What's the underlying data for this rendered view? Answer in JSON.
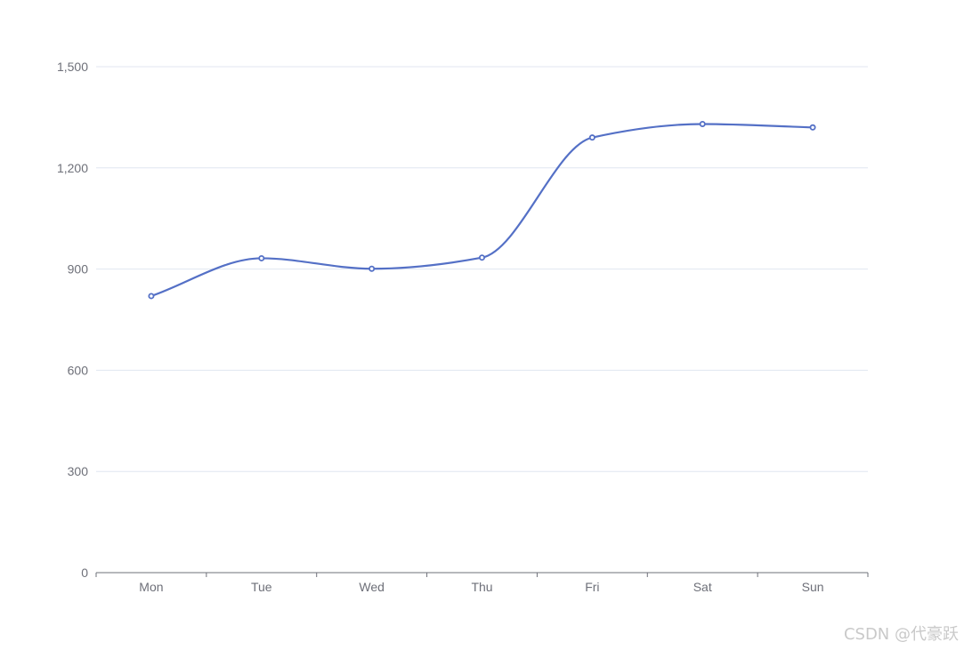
{
  "chart_data": {
    "type": "line",
    "smooth": true,
    "categories": [
      "Mon",
      "Tue",
      "Wed",
      "Thu",
      "Fri",
      "Sat",
      "Sun"
    ],
    "values": [
      820,
      932,
      901,
      934,
      1290,
      1330,
      1320
    ],
    "ylim": [
      0,
      1500
    ],
    "y_ticks": [
      "0",
      "300",
      "600",
      "900",
      "1,200",
      "1,500"
    ],
    "y_tick_values": [
      0,
      300,
      600,
      900,
      1200,
      1500
    ],
    "grid": true,
    "series_color": "#5470c6",
    "axis_color": "#6e7079",
    "grid_color": "#e0e6f1"
  },
  "watermark": "CSDN @代豪跃"
}
